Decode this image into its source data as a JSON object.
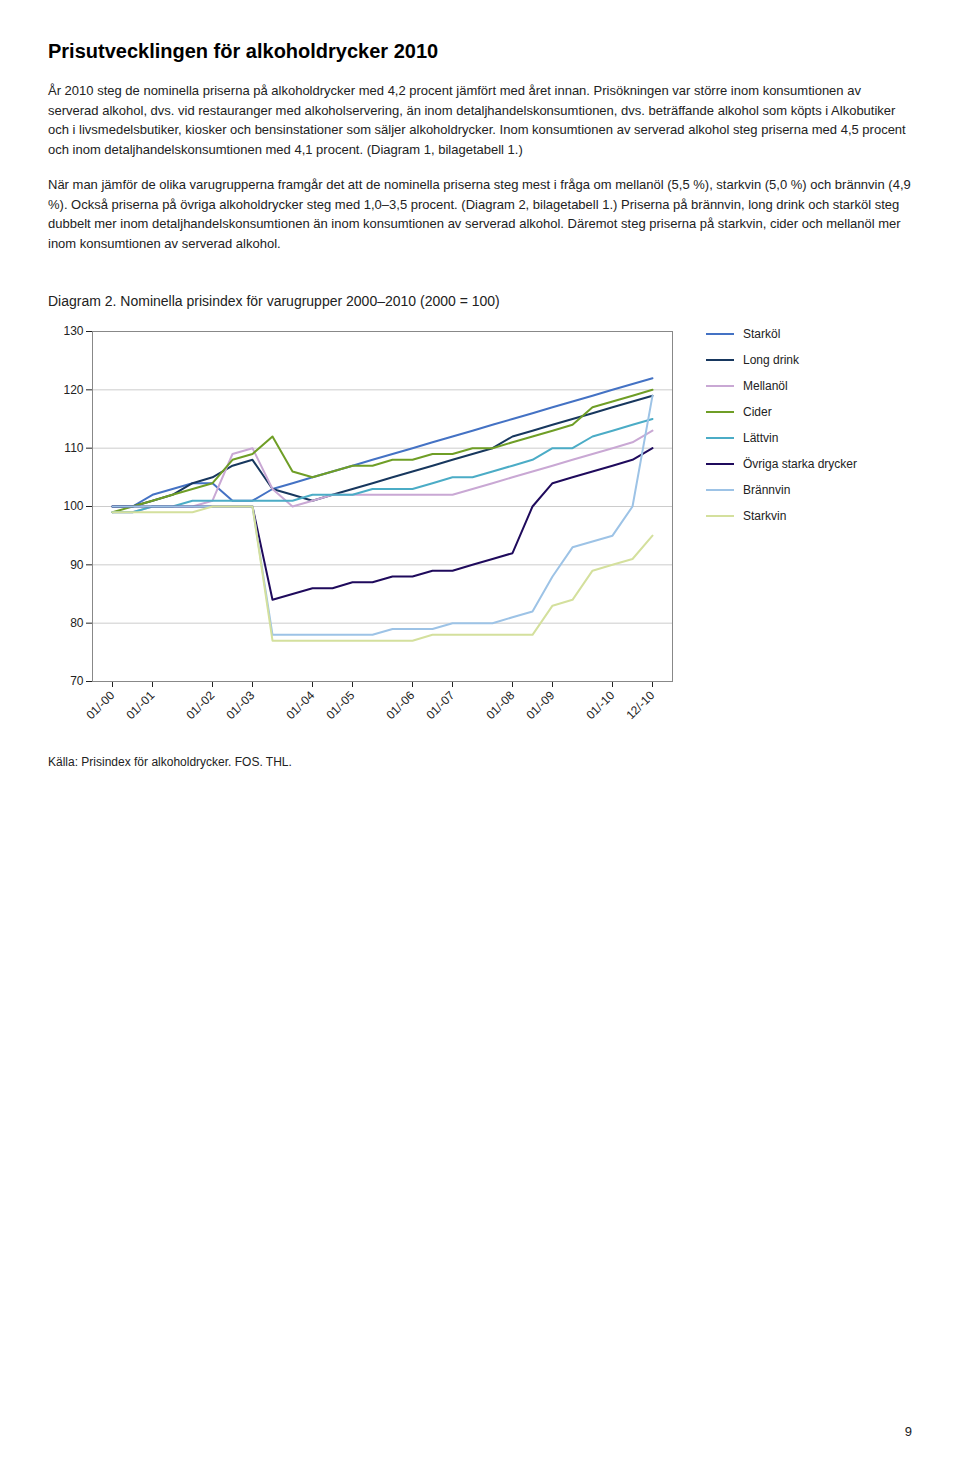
{
  "chart_data": {
    "type": "line",
    "title": "Diagram 2. Nominella prisindex för varugrupper 2000–2010 (2000 = 100)",
    "annotations": [
      "Prisutvecklingen för alkoholdrycker 2010",
      "År 2010 steg de nominella priserna på alkoholdrycker med 4,2 procent jämfört med året innan. Prisökningen var större inom konsumtionen av serverad alkohol, dvs. vid restauranger med alkoholservering, än inom detaljhandelskonsumtionen, dvs. beträffande alkohol som köpts i Alkobutiker och i livsmedelsbutiker, kiosker och bensinstationer som säljer alkoholdrycker. Inom konsumtionen av serverad alkohol steg priserna med 4,5 procent och inom detaljhandelskonsumtionen med 4,1 procent. (Diagram 1, bilagetabell 1.)",
      "När man jämför de olika varugrupperna framgår det att de nominella priserna steg mest i fråga om mellanöl (5,5 %), starkvin (5,0 %) och brännvin (4,9 %). Också priserna på övriga alkoholdrycker steg med 1,0–3,5 procent. (Diagram 2, bilagetabell 1.) Priserna på brännvin, long drink och starköl steg dubbelt mer inom detaljhandelskonsumtionen än inom konsumtionen av serverad alkohol. Däremot steg priserna på starkvin, cider och mellanöl mer inom konsumtionen av serverad alkohol.",
      "Källa: Prisindex för alkoholdrycker. FOS. THL.",
      "9"
    ],
    "categories": [
      "01/-00",
      null,
      "01/-01",
      null,
      null,
      "01/-02",
      null,
      "01/-03",
      null,
      null,
      "01/-04",
      null,
      "01/-05",
      null,
      null,
      "01/-06",
      null,
      "01/-07",
      null,
      null,
      "01/-08",
      null,
      "01/-09",
      null,
      null,
      "01/-10",
      null,
      "12/-10"
    ],
    "ylim": [
      70,
      130
    ],
    "yticks": [
      70,
      80,
      90,
      100,
      110,
      120,
      130
    ],
    "grid": "y",
    "legend": "right",
    "series": [
      {
        "name": "Starköl",
        "color": "#4472C4",
        "values": [
          100,
          100,
          102,
          103,
          104,
          104,
          101,
          101,
          103,
          104,
          105,
          106,
          107,
          108,
          109,
          110,
          111,
          112,
          113,
          114,
          115,
          116,
          117,
          118,
          119,
          120,
          121,
          122
        ]
      },
      {
        "name": "Long drink",
        "color": "#17375E",
        "values": [
          100,
          100,
          101,
          102,
          104,
          105,
          107,
          108,
          103,
          102,
          101,
          102,
          103,
          104,
          105,
          106,
          107,
          108,
          109,
          110,
          112,
          113,
          114,
          115,
          116,
          117,
          118,
          119
        ]
      },
      {
        "name": "Mellanöl",
        "color": "#C9A8D4",
        "values": [
          99,
          99,
          100,
          100,
          100,
          101,
          109,
          110,
          103,
          100,
          101,
          102,
          102,
          102,
          102,
          102,
          102,
          102,
          103,
          104,
          105,
          106,
          107,
          108,
          109,
          110,
          111,
          113
        ]
      },
      {
        "name": "Cider",
        "color": "#6F9E26",
        "values": [
          99,
          100,
          101,
          102,
          103,
          104,
          108,
          109,
          112,
          106,
          105,
          106,
          107,
          107,
          108,
          108,
          109,
          109,
          110,
          110,
          111,
          112,
          113,
          114,
          117,
          118,
          119,
          120
        ]
      },
      {
        "name": "Lättvin",
        "color": "#4BACC6",
        "values": [
          99,
          99,
          100,
          100,
          101,
          101,
          101,
          101,
          101,
          101,
          102,
          102,
          102,
          103,
          103,
          103,
          104,
          105,
          105,
          106,
          107,
          108,
          110,
          110,
          112,
          113,
          114,
          115
        ]
      },
      {
        "name": "Övriga starka drycker",
        "color": "#1F0A5C",
        "values": [
          100,
          100,
          100,
          100,
          100,
          100,
          100,
          100,
          84,
          85,
          86,
          86,
          87,
          87,
          88,
          88,
          89,
          89,
          90,
          91,
          92,
          100,
          104,
          105,
          106,
          107,
          108,
          110
        ]
      },
      {
        "name": "Brännvin",
        "color": "#9DC3E6",
        "values": [
          100,
          100,
          100,
          100,
          100,
          100,
          100,
          100,
          78,
          78,
          78,
          78,
          78,
          78,
          79,
          79,
          79,
          80,
          80,
          80,
          81,
          82,
          88,
          93,
          94,
          95,
          100,
          119
        ]
      },
      {
        "name": "Starkvin",
        "color": "#D4E09D",
        "values": [
          99,
          99,
          99,
          99,
          99,
          100,
          100,
          100,
          77,
          77,
          77,
          77,
          77,
          77,
          77,
          77,
          78,
          78,
          78,
          78,
          78,
          78,
          83,
          84,
          89,
          90,
          91,
          95
        ]
      }
    ]
  }
}
